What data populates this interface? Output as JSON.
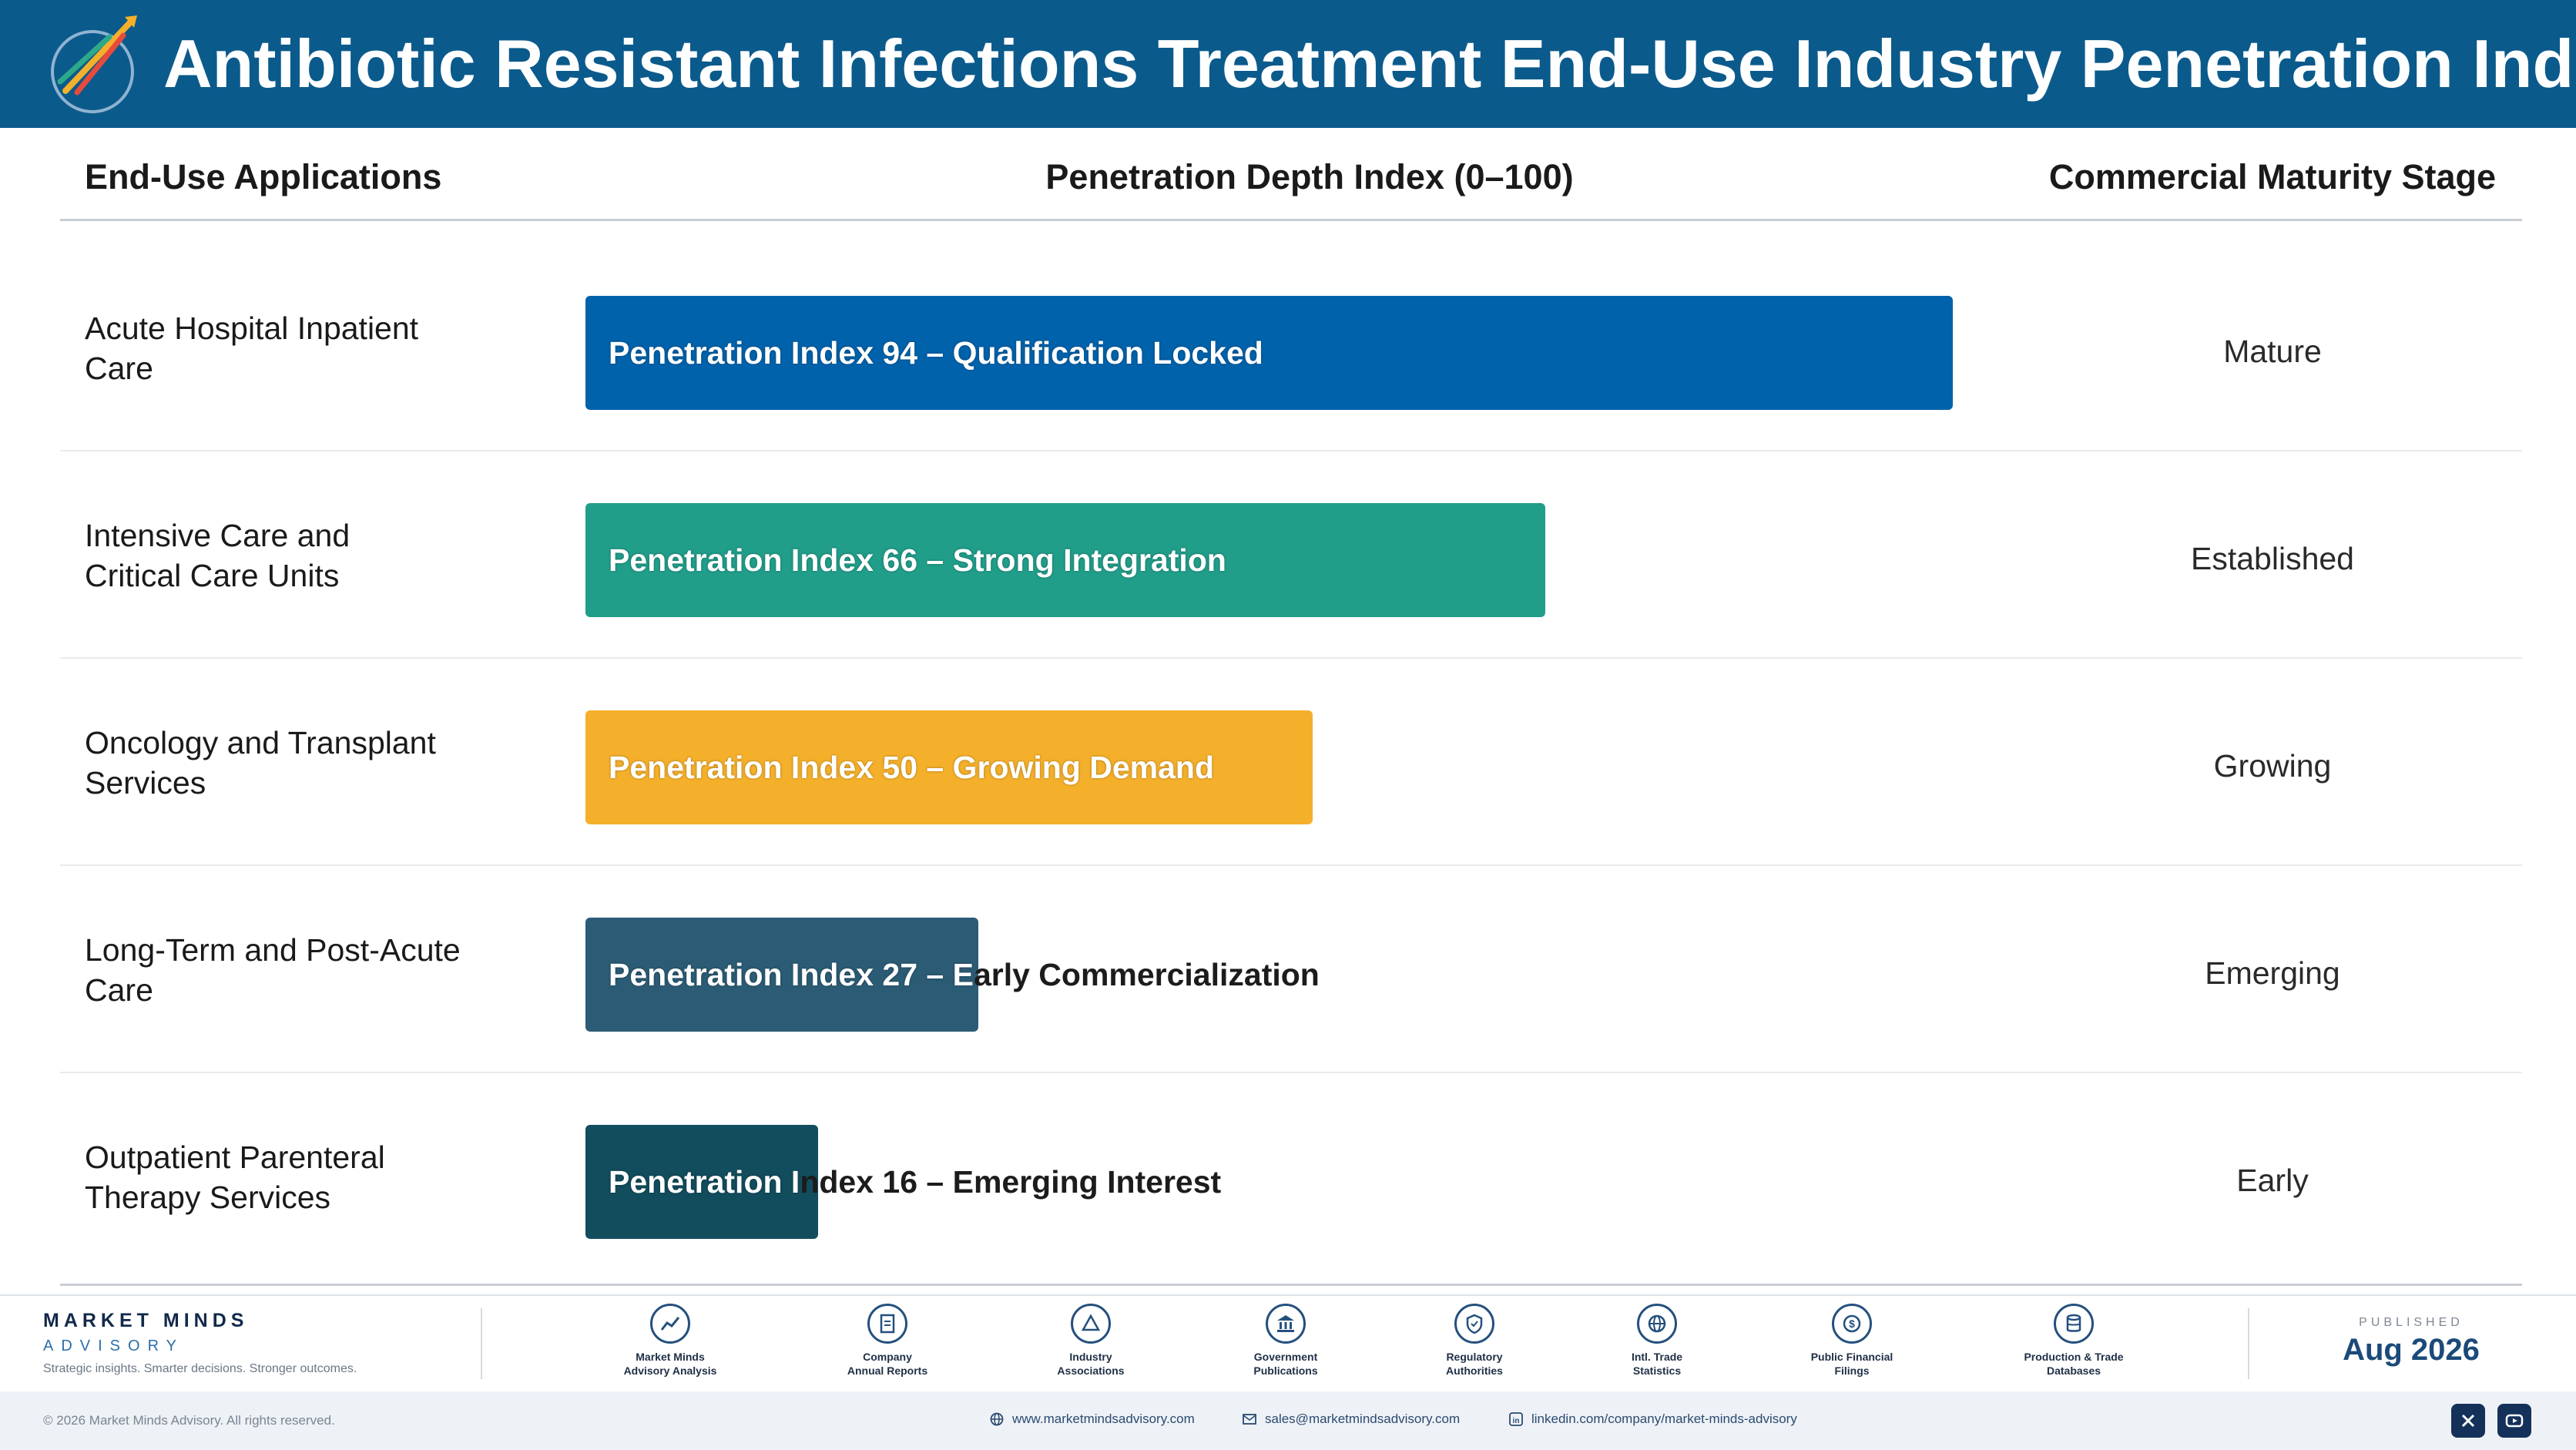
{
  "header": {
    "title": "Antibiotic Resistant Infections Treatment End-Use Industry Penetration Index"
  },
  "columns": {
    "applications": "End-Use Applications",
    "index": "Penetration Depth Index (0–100)",
    "stage": "Commercial Maturity Stage"
  },
  "chart_data": {
    "type": "bar",
    "orientation": "horizontal",
    "xlim": [
      0,
      100
    ],
    "categories": [
      "Acute Hospital Inpatient Care",
      "Intensive Care and Critical Care Units",
      "Oncology and Transplant Services",
      "Long-Term and Post-Acute Care",
      "Outpatient Parenteral Therapy Services"
    ],
    "values": [
      94,
      66,
      50,
      27,
      16
    ],
    "bar_labels": [
      "Penetration Index 94 – Qualification Locked",
      "Penetration Index 66 – Strong Integration",
      "Penetration Index 50 – Growing Demand",
      "Penetration Index 27 – Early Commercialization",
      "Penetration Index 16 – Emerging Interest"
    ],
    "stages": [
      "Mature",
      "Established",
      "Growing",
      "Emerging",
      "Early"
    ],
    "colors": [
      "#0062ab",
      "#219e8a",
      "#f5b02b",
      "#2c5c75",
      "#124d5d"
    ],
    "grid": false,
    "legend": "none"
  },
  "rows": [
    {
      "app_line1": "Acute Hospital Inpatient",
      "app_line2": "Care"
    },
    {
      "app_line1": "Intensive Care and",
      "app_line2": "Critical Care Units"
    },
    {
      "app_line1": "Oncology and Transplant",
      "app_line2": "Services"
    },
    {
      "app_line1": "Long-Term and Post-Acute",
      "app_line2": "Care"
    },
    {
      "app_line1": "Outpatient Parenteral",
      "app_line2": "Therapy Services"
    }
  ],
  "footer": {
    "brand_name": "MARKET MINDS",
    "brand_sub": "ADVISORY",
    "tagline": "Strategic insights. Smarter decisions. Stronger outcomes.",
    "sources": [
      {
        "line1": "Market Minds",
        "line2": "Advisory Analysis",
        "icon": "chart-line-icon"
      },
      {
        "line1": "Company",
        "line2": "Annual Reports",
        "icon": "document-icon"
      },
      {
        "line1": "Industry",
        "line2": "Associations",
        "icon": "network-icon"
      },
      {
        "line1": "Government",
        "line2": "Publications",
        "icon": "government-building-icon"
      },
      {
        "line1": "Regulatory",
        "line2": "Authorities",
        "icon": "shield-icon"
      },
      {
        "line1": "Intl. Trade",
        "line2": "Statistics",
        "icon": "globe-icon"
      },
      {
        "line1": "Public Financial",
        "line2": "Filings",
        "icon": "dollar-coin-icon"
      },
      {
        "line1": "Production & Trade",
        "line2": "Databases",
        "icon": "database-icon"
      }
    ],
    "published_label": "PUBLISHED",
    "published_date": "Aug 2026",
    "copyright": "© 2026 Market Minds Advisory. All rights reserved.",
    "website": "www.marketmindsadvisory.com",
    "email": "sales@marketmindsadvisory.com",
    "linkedin": "linkedin.com/company/market-minds-advisory"
  }
}
